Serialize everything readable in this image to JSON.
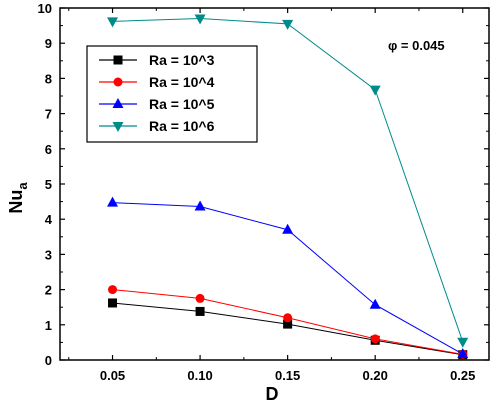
{
  "chart_data": {
    "type": "line",
    "x": [
      0.05,
      0.1,
      0.15,
      0.2,
      0.25
    ],
    "x_tick_labels": [
      "0.05",
      "0.10",
      "0.15",
      "0.20",
      "0.25"
    ],
    "y_tick_labels": [
      "0",
      "1",
      "2",
      "3",
      "4",
      "5",
      "6",
      "7",
      "8",
      "9",
      "10"
    ],
    "xlabel": "D",
    "ylabel_main": "Nu",
    "ylabel_sub": "a",
    "xlim": [
      0.02,
      0.265
    ],
    "ylim": [
      0,
      10
    ],
    "annotation": "φ = 0.045",
    "legend_position": "top-left",
    "grid": false,
    "series": [
      {
        "name": "Ra = 10^3",
        "color": "#000000",
        "marker": "square",
        "values": [
          1.62,
          1.38,
          1.02,
          0.56,
          0.15
        ]
      },
      {
        "name": "Ra = 10^4",
        "color": "#ff0000",
        "marker": "circle",
        "values": [
          2.0,
          1.75,
          1.2,
          0.6,
          0.16
        ]
      },
      {
        "name": "Ra = 10^5",
        "color": "#0000ff",
        "marker": "triangle-up",
        "values": [
          4.47,
          4.36,
          3.7,
          1.57,
          0.17
        ]
      },
      {
        "name": "Ra = 10^6",
        "color": "#008b8b",
        "marker": "triangle-down",
        "values": [
          9.62,
          9.7,
          9.55,
          7.68,
          0.52
        ]
      }
    ]
  }
}
